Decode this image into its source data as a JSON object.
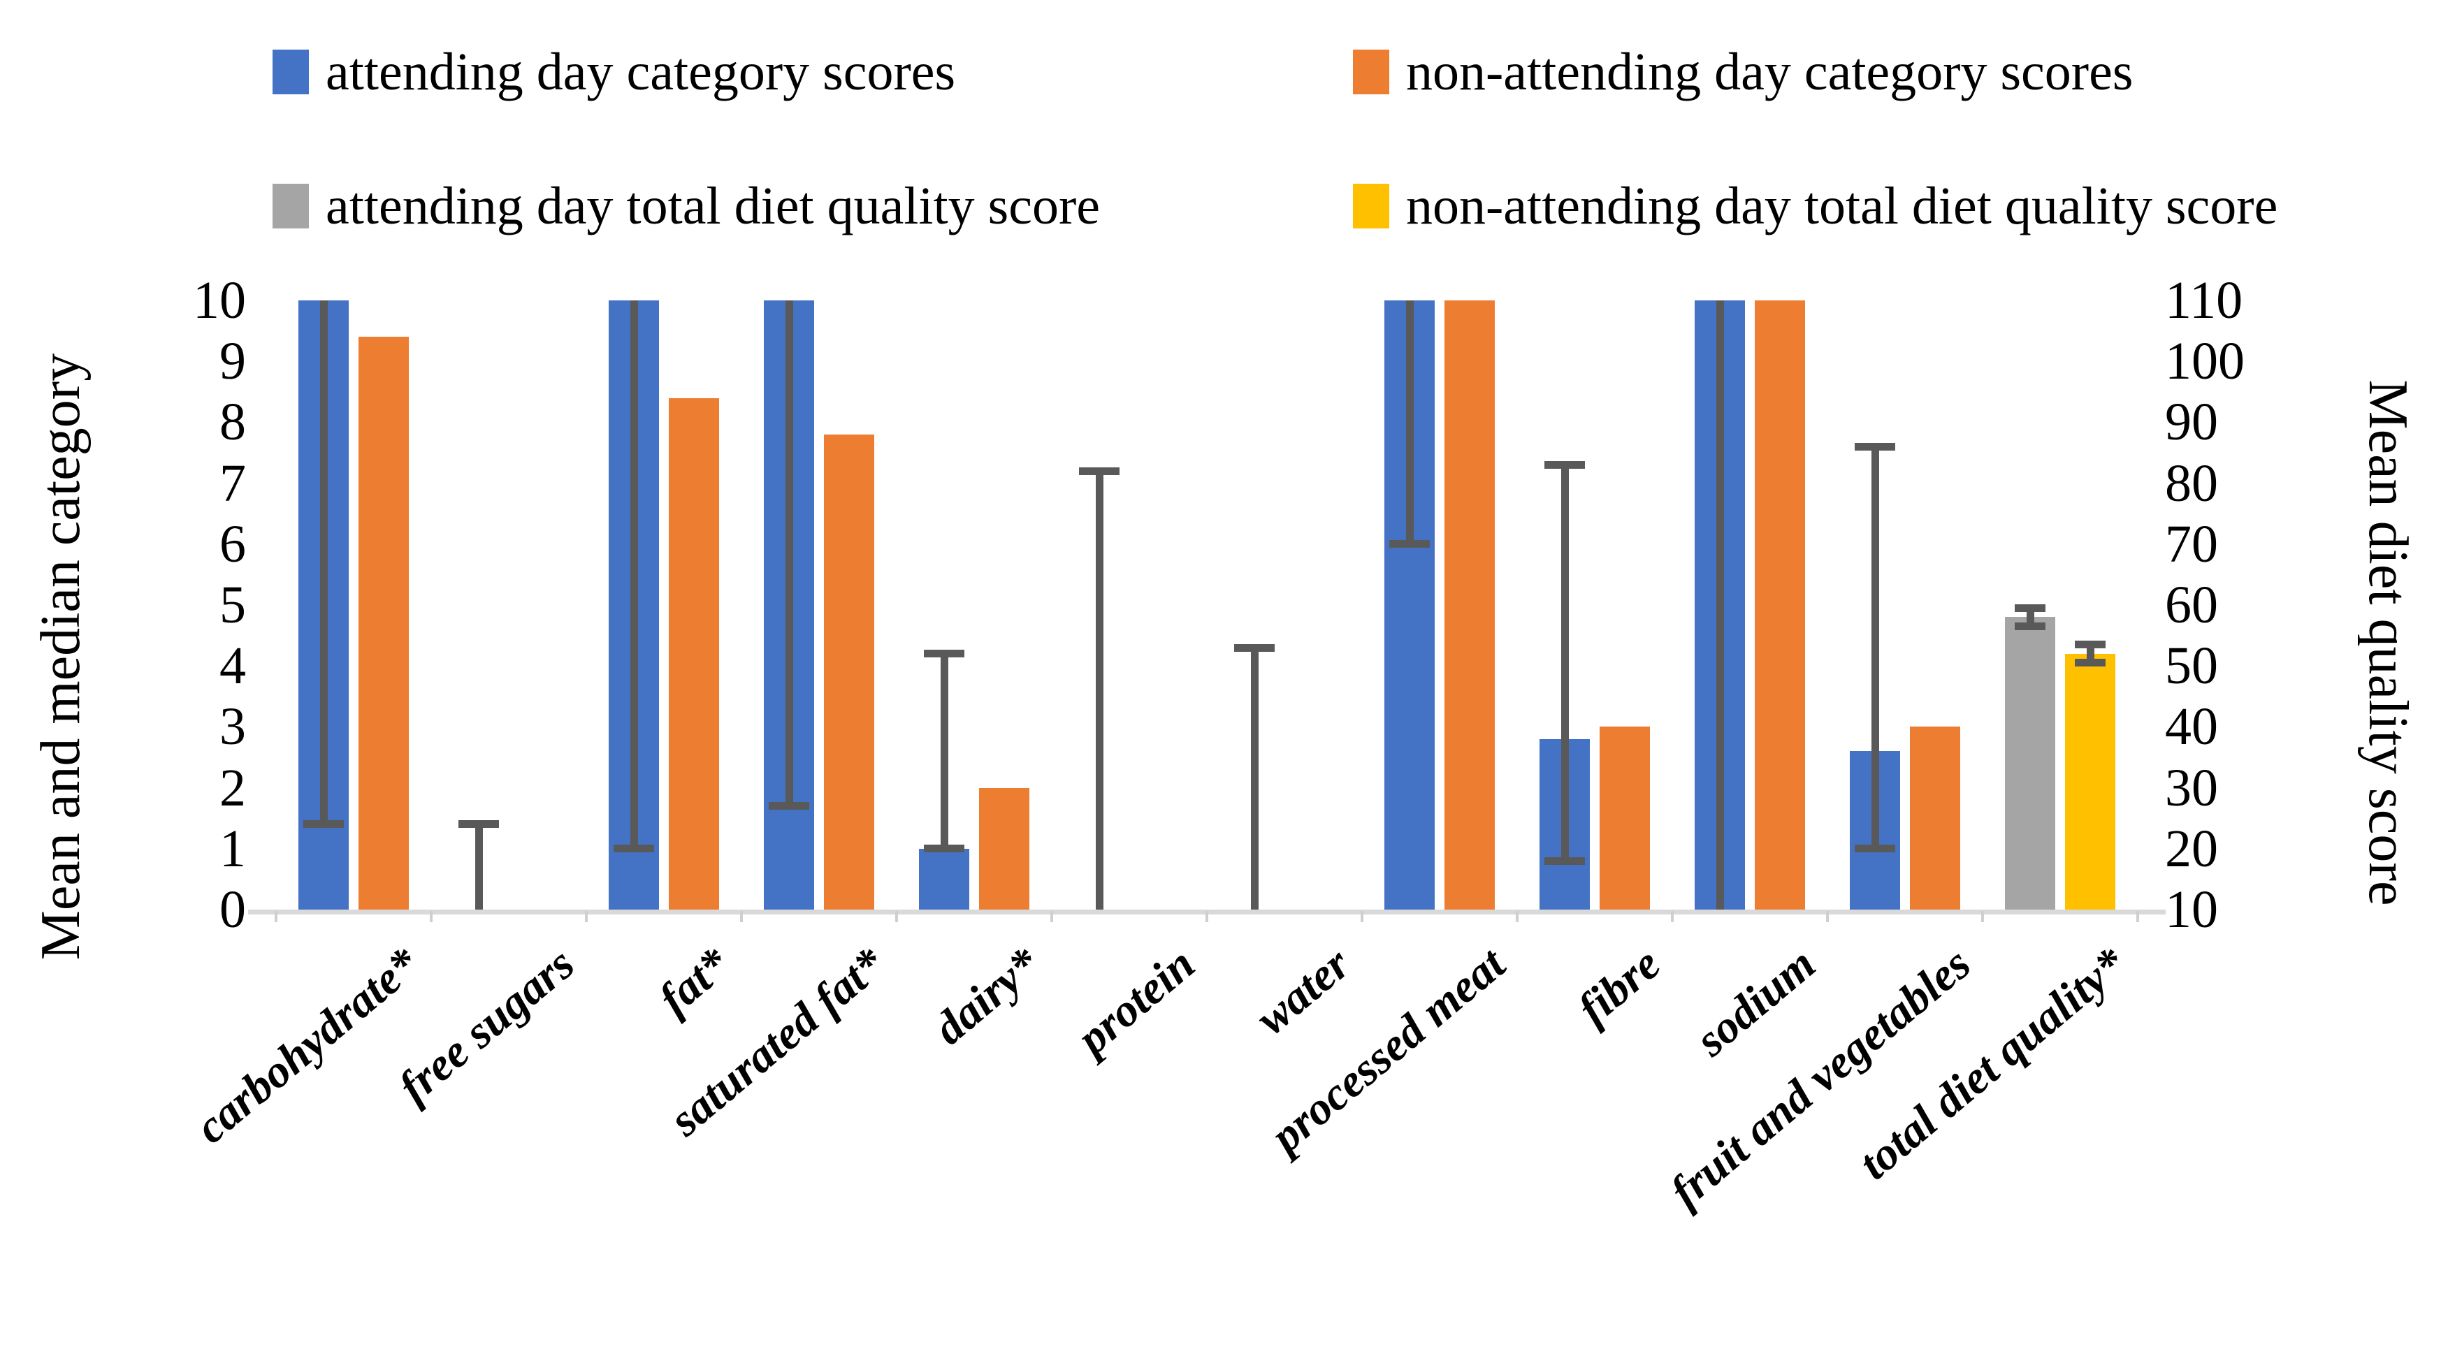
{
  "chart_data": {
    "type": "bar",
    "title": "",
    "grid": false,
    "legend_position": "top",
    "background": "#FFFFFF",
    "error_bar_color": "#595959",
    "axis_line_color": "#D9D9D9",
    "series": [
      {
        "name": "attending day category scores",
        "color": "#4472C4"
      },
      {
        "name": "non-attending day category scores",
        "color": "#ED7D31"
      },
      {
        "name": "attending day total diet quality score",
        "color": "#A5A5A5"
      },
      {
        "name": "non-attending day total diet quality score",
        "color": "#FFC000"
      }
    ],
    "left_axis": {
      "label": "Mean and median category",
      "min": 0,
      "max": 10,
      "ticks": [
        10,
        9,
        8,
        7,
        6,
        5,
        4,
        3,
        2,
        1,
        0
      ]
    },
    "right_axis": {
      "label": "Mean diet quality score",
      "min": 10,
      "max": 110,
      "ticks": [
        110,
        100,
        90,
        80,
        70,
        60,
        50,
        40,
        30,
        20,
        10
      ]
    },
    "categories": [
      {
        "label": "carbohydrate*",
        "axis": "left",
        "values": [
          10,
          9.4
        ],
        "error1": {
          "low": 1.4,
          "high": 10,
          "cap_low": true,
          "cap_high": false
        }
      },
      {
        "label": "free sugars",
        "axis": "left",
        "values": [
          0,
          0
        ],
        "error1": {
          "low": 0,
          "high": 1.4,
          "cap_low": false,
          "cap_high": true
        }
      },
      {
        "label": "fat*",
        "axis": "left",
        "values": [
          10,
          8.4
        ],
        "error1": {
          "low": 1.0,
          "high": 10,
          "cap_low": true,
          "cap_high": false
        }
      },
      {
        "label": "saturated fat*",
        "axis": "left",
        "values": [
          10,
          7.8
        ],
        "error1": {
          "low": 1.7,
          "high": 10,
          "cap_low": true,
          "cap_high": false
        }
      },
      {
        "label": "dairy*",
        "axis": "left",
        "values": [
          1,
          2
        ],
        "error1": {
          "low": 1.0,
          "high": 4.2,
          "cap_low": true,
          "cap_high": true
        }
      },
      {
        "label": "protein",
        "axis": "left",
        "values": [
          0,
          0
        ],
        "error1": {
          "low": 0,
          "high": 7.2,
          "cap_low": false,
          "cap_high": true
        }
      },
      {
        "label": "water",
        "axis": "left",
        "values": [
          0,
          0
        ],
        "error1": {
          "low": 0,
          "high": 4.3,
          "cap_low": false,
          "cap_high": true
        }
      },
      {
        "label": "processed meat",
        "axis": "left",
        "values": [
          10,
          10
        ],
        "error1": {
          "low": 6.0,
          "high": 10,
          "cap_low": true,
          "cap_high": false
        }
      },
      {
        "label": "fibre",
        "axis": "left",
        "values": [
          2.8,
          3
        ],
        "error1": {
          "low": 0.8,
          "high": 7.3,
          "cap_low": true,
          "cap_high": true
        }
      },
      {
        "label": "sodium",
        "axis": "left",
        "values": [
          10,
          10
        ],
        "error1": {
          "low": 0,
          "high": 10,
          "cap_low": false,
          "cap_high": false
        }
      },
      {
        "label": "fruit and vegetables",
        "axis": "left",
        "values": [
          2.6,
          3
        ],
        "error1": {
          "low": 1.0,
          "high": 7.6,
          "cap_low": true,
          "cap_high": true
        }
      },
      {
        "label": "total diet quality*",
        "axis": "right",
        "values": [
          58,
          52
        ],
        "error1": {
          "low": 56.5,
          "high": 59.5,
          "cap_low": true,
          "cap_high": true
        },
        "error2": {
          "low": 50.5,
          "high": 53.5,
          "cap_low": true,
          "cap_high": true
        }
      }
    ]
  }
}
